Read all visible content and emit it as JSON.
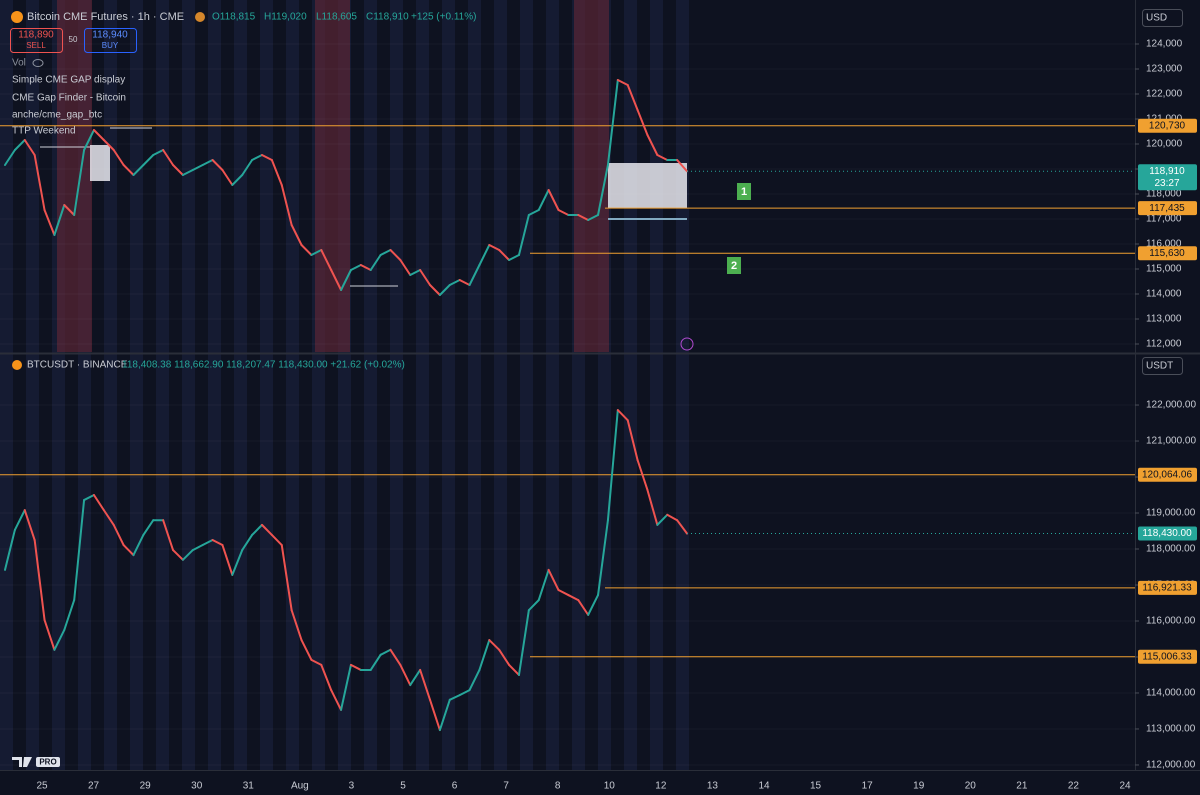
{
  "header": {
    "title": "Bitcoin CME Futures · 1h · CME",
    "ohlc": [
      "O118,815",
      "H119,020",
      "L118,605",
      "C118,910"
    ],
    "change": "+125 (+0.11%)",
    "sell_price": "118,890",
    "sell": "SELL",
    "spread": "50",
    "buy_price": "118,940",
    "buy": "BUY",
    "volume": "Vol",
    "indicators": [
      "Simple CME GAP display",
      "CME Gap Finder - Bitcoin",
      "anche/cme_gap_btc",
      "TTP Weekend"
    ],
    "logo": "PRO"
  },
  "time_axis": [
    "25",
    "27",
    "29",
    "30",
    "31",
    "Aug",
    "3",
    "5",
    "6",
    "7",
    "8",
    "10",
    "12",
    "13",
    "14",
    "15",
    "17",
    "19",
    "20",
    "21",
    "22",
    "24"
  ],
  "chart_data": [
    {
      "type": "line",
      "title": "Bitcoin CME Futures · 1h · CME",
      "currency": "USD",
      "colors": {
        "up": "#26a69a",
        "down": "#ef5350"
      },
      "level_color": "#f0a030",
      "last_color": "#26a69a",
      "values": [
        119160,
        119760,
        120160,
        119560,
        117360,
        116360,
        117560,
        117160,
        119760,
        120560,
        120160,
        119760,
        119160,
        118760,
        119160,
        119560,
        119760,
        119160,
        118760,
        118960,
        119160,
        119360,
        118960,
        118360,
        118760,
        119360,
        119560,
        119360,
        118360,
        116760,
        115960,
        115560,
        115760,
        114960,
        114160,
        114960,
        115160,
        114960,
        115560,
        115760,
        115360,
        114760,
        114960,
        114360,
        113960,
        114360,
        114560,
        114360,
        115160,
        115960,
        115760,
        115360,
        115560,
        117160,
        117360,
        118160,
        117360,
        117160,
        117160,
        116960,
        117160,
        119160,
        122560,
        122360,
        121360,
        120360,
        119560,
        119360,
        119360,
        118910
      ],
      "ylim": [
        111680,
        125760
      ],
      "yticks": [
        {
          "value": 112000,
          "label": "112,000"
        },
        {
          "value": 113000,
          "label": "113,000"
        },
        {
          "value": 114000,
          "label": "114,000"
        },
        {
          "value": 115000,
          "label": "115,000"
        },
        {
          "value": 116000,
          "label": "116,000"
        },
        {
          "value": 117000,
          "label": "117,000"
        },
        {
          "value": 118000,
          "label": "118,000"
        },
        {
          "value": 119000,
          "label": "119,000"
        },
        {
          "value": 120000,
          "label": "120,000"
        },
        {
          "value": 121000,
          "label": "121,000"
        },
        {
          "value": 122000,
          "label": "122,000"
        },
        {
          "value": 123000,
          "label": "123,000"
        },
        {
          "value": 124000,
          "label": "124,000"
        }
      ],
      "levels": [
        {
          "value": 120730,
          "label": "120,730"
        },
        {
          "value": 117435,
          "label": "117,435"
        },
        {
          "value": 115630,
          "label": "115,630"
        }
      ],
      "last": {
        "value": 118910,
        "label": "118,910",
        "countdown": "23:27"
      },
      "annotations": [
        "1",
        "2"
      ]
    },
    {
      "type": "line",
      "title": "BTCUSDT · BINANCE",
      "subtitle": "118,408.38 118,662.90 118,207.47 118,430.00 +21.62 (+0.02%)",
      "currency": "USDT",
      "colors": {
        "up": "#26a69a",
        "down": "#ef5350"
      },
      "level_color": "#f0a030",
      "last_color": "#26a69a",
      "values": [
        117420,
        118530,
        119080,
        118250,
        116030,
        115200,
        115750,
        116580,
        119360,
        119500,
        119080,
        118670,
        118110,
        117830,
        118390,
        118800,
        118800,
        117970,
        117700,
        117970,
        118110,
        118250,
        118110,
        117280,
        117970,
        118390,
        118670,
        118390,
        118110,
        116300,
        115470,
        114920,
        114780,
        114080,
        113530,
        114780,
        114640,
        114640,
        115060,
        115200,
        114780,
        114220,
        114640,
        113810,
        112970,
        113810,
        113940,
        114080,
        114640,
        115470,
        115200,
        114780,
        114500,
        116300,
        116580,
        117420,
        116860,
        116720,
        116580,
        116170,
        116720,
        118800,
        121860,
        121580,
        120470,
        119640,
        118670,
        118950,
        118800,
        118430
      ],
      "ylim": [
        111860,
        123390
      ],
      "yticks": [
        {
          "value": 112000,
          "label": "112,000.00"
        },
        {
          "value": 113000,
          "label": "113,000.00"
        },
        {
          "value": 114000,
          "label": "114,000.00"
        },
        {
          "value": 115000,
          "label": "115,000.00"
        },
        {
          "value": 116000,
          "label": "116,000.00"
        },
        {
          "value": 117000,
          "label": "117,000.00"
        },
        {
          "value": 118000,
          "label": "118,000.00"
        },
        {
          "value": 119000,
          "label": "119,000.00"
        },
        {
          "value": 120000,
          "label": "120,000.00"
        },
        {
          "value": 121000,
          "label": "121,000.00"
        },
        {
          "value": 122000,
          "label": "122,000.00"
        }
      ],
      "levels": [
        {
          "value": 120064.06,
          "label": "120,064.06"
        },
        {
          "value": 116921.33,
          "label": "116,921.33"
        },
        {
          "value": 115006.33,
          "label": "115,006.33"
        }
      ],
      "last": {
        "value": 118430,
        "label": "118,430.00"
      }
    }
  ]
}
